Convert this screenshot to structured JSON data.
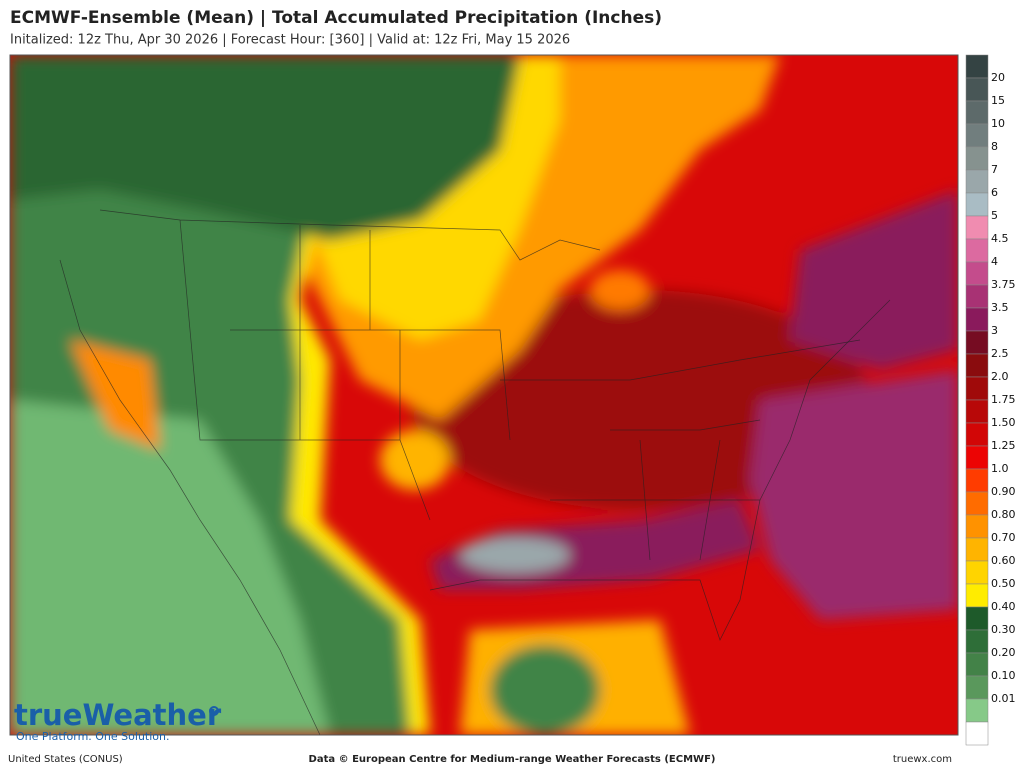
{
  "header": {
    "title": "ECMWF-Ensemble (Mean)  |  Total Accumulated Precipitation (Inches)",
    "subtitle": "Initalized: 12z Thu, Apr 30 2026  |  Forecast Hour: [360]  |  Valid at: 12z Fri, May 15 2026"
  },
  "legend": {
    "labels": [
      "20",
      "15",
      "10",
      "8",
      "7",
      "6",
      "5",
      "4.5",
      "4",
      "3.75",
      "3.5",
      "3",
      "2.5",
      "2.0",
      "1.75",
      "1.50",
      "1.25",
      "1.0",
      "0.90",
      "0.80",
      "0.70",
      "0.60",
      "0.50",
      "0.40",
      "0.30",
      "0.20",
      "0.10",
      "0.01"
    ],
    "colors": [
      "#344343",
      "#485656",
      "#5d6a6a",
      "#717e7e",
      "#86928f",
      "#9aa7aa",
      "#a9bcc4",
      "#f08cb0",
      "#dc6aa0",
      "#c44c8c",
      "#a83274",
      "#8a1a5c",
      "#760c22",
      "#8a0c0e",
      "#a00a0a",
      "#b80808",
      "#d20606",
      "#ec0404",
      "#ff3c00",
      "#ff6c00",
      "#ff9200",
      "#ffb400",
      "#ffd400",
      "#ffec00",
      "#1e5a2a",
      "#2e6e38",
      "#438248",
      "#5a985c",
      "#86c988",
      "#ffffff"
    ]
  },
  "logo": {
    "name": "trueWeather",
    "tagline": "One Platform. One Solution."
  },
  "footer": {
    "region": "United States (CONUS)",
    "source": "Data © European Centre for Medium-range Weather Forecasts (ECMWF)",
    "site": "truewx.com"
  }
}
